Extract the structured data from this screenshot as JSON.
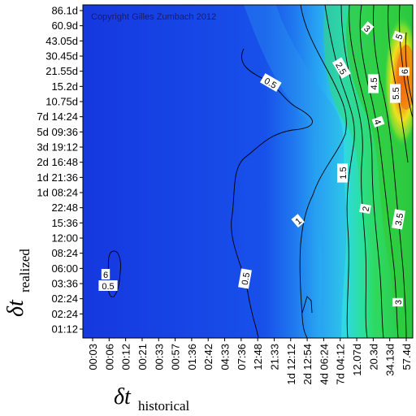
{
  "chart_data": {
    "type": "heatmap",
    "copyright": "Copyright Gilles Zumbach 2012",
    "x_axis": {
      "title_symbol": "δt",
      "title_subscript": "historical",
      "tick_labels": [
        "00:03",
        "00:06",
        "00:12",
        "00:21",
        "00:33",
        "00:57",
        "01:36",
        "02:42",
        "04:33",
        "07:36",
        "12:48",
        "21:33",
        "1d 12:12",
        "2d 12:54",
        "4d 06:24",
        "7d 04:12",
        "12.07d",
        "20.3d",
        "34.13d",
        "57.4d"
      ]
    },
    "y_axis": {
      "title_symbol": "δt",
      "title_subscript": "realized",
      "tick_labels": [
        "86.1d",
        "60.9d",
        "43.05d",
        "30.45d",
        "21.55d",
        "15.2d",
        "10.75d",
        "7d 14:24",
        "5d 09:36",
        "3d 19:12",
        "2d 16:48",
        "1d 21:36",
        "1d 08:24",
        "22:48",
        "15:36",
        "12:00",
        "08:24",
        "06:00",
        "03:36",
        "02:24",
        "02:24",
        "01:12"
      ]
    },
    "contour_labels": [
      "0.5",
      "0.5",
      "1",
      "1.5",
      "2",
      "2.5",
      "3",
      "3",
      "3.5",
      "4",
      "4.5",
      "5",
      "5.5",
      "6",
      "6",
      "0.5"
    ],
    "color_scale": [
      "#1446e6",
      "#1d6ff0",
      "#2aa8f2",
      "#2fe0e0",
      "#27e6a0",
      "#2fd84a",
      "#7ee02a",
      "#f0e020",
      "#f08a10",
      "#e83a10"
    ],
    "grid": false
  }
}
